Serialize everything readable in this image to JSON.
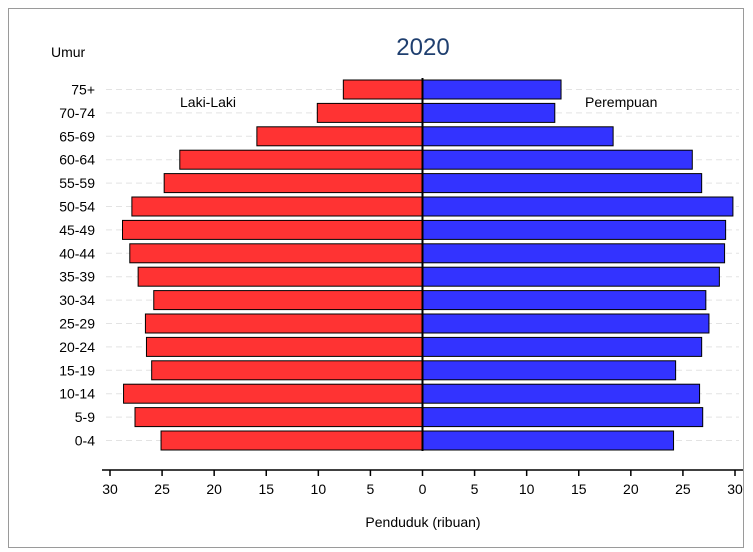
{
  "chart_data": {
    "type": "bar",
    "orientation": "horizontal",
    "layout": "population-pyramid",
    "title": "2020",
    "category_axis_label": "Umur",
    "xlabel": "Penduduk (ribuan)",
    "categories": [
      "0-4",
      "5-9",
      "10-14",
      "15-19",
      "20-24",
      "25-29",
      "30-34",
      "35-39",
      "40-44",
      "45-49",
      "50-54",
      "55-59",
      "60-64",
      "65-69",
      "70-74",
      "75+"
    ],
    "series": [
      {
        "name": "Laki-Laki",
        "side": "left",
        "color": "#ff3333",
        "values": [
          25.1,
          27.6,
          28.7,
          26.0,
          26.5,
          26.6,
          25.8,
          27.3,
          28.1,
          28.8,
          27.9,
          24.8,
          23.3,
          15.9,
          10.1,
          7.6
        ]
      },
      {
        "name": "Perempuan",
        "side": "right",
        "color": "#3333ff",
        "values": [
          24.1,
          26.9,
          26.6,
          24.3,
          26.8,
          27.5,
          27.2,
          28.5,
          29.0,
          29.1,
          29.8,
          26.8,
          25.9,
          18.3,
          12.7,
          13.3
        ]
      }
    ],
    "xlim": [
      -30,
      30
    ],
    "xticks": [
      -30,
      -25,
      -20,
      -15,
      -10,
      -5,
      0,
      5,
      10,
      15,
      20,
      25,
      30
    ],
    "xtick_labels": [
      "30",
      "25",
      "20",
      "15",
      "10",
      "5",
      "0",
      "5",
      "10",
      "15",
      "20",
      "25",
      "30"
    ],
    "grid": true,
    "grid_style": "dashed horizontal",
    "legend": "in-plot labels (top-left and top-right)",
    "bar_edge_color": "#000000"
  }
}
